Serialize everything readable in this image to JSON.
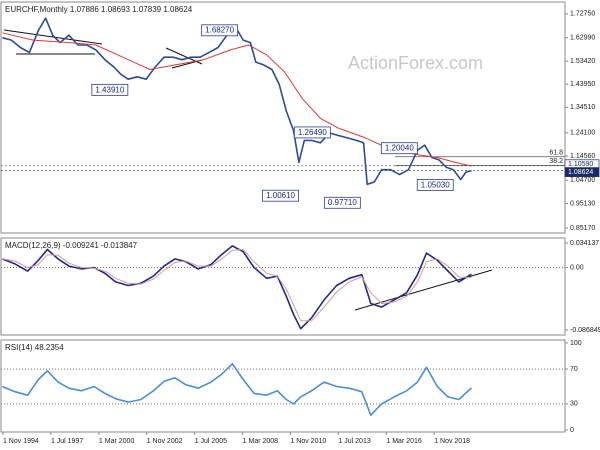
{
  "chart_data": [
    {
      "type": "line",
      "title": "EURCHF,Monthly  1.07886 1.08693 1.07839 1.08624",
      "watermark": "ActionForex.com",
      "xlim": [
        1994.72,
        2026.11
      ],
      "ylim": [
        0.831,
        1.776
      ],
      "yticks": [
        {
          "value": 1.7275,
          "label": "1.72750"
        },
        {
          "value": 1.6299,
          "label": "1.62990"
        },
        {
          "value": 1.5342,
          "label": "1.53420"
        },
        {
          "value": 1.4395,
          "label": "1.43950"
        },
        {
          "value": 1.3451,
          "label": "1.34510"
        },
        {
          "value": 1.241,
          "label": "1.24100"
        },
        {
          "value": 1.1456,
          "label": "1.14560"
        },
        {
          "value": 1.047,
          "label": "1.04700"
        },
        {
          "value": 0.9513,
          "label": "0.95130"
        },
        {
          "value": 0.8517,
          "label": "0.85170"
        }
      ],
      "series": [
        {
          "name": "EURCHF",
          "color": "#2b4c9b",
          "x": [
            1994.8,
            1995.3,
            1995.8,
            1996.3,
            1996.8,
            1997.2,
            1997.6,
            1998.0,
            1998.5,
            1999.0,
            1999.5,
            2000.0,
            2000.5,
            2001.0,
            2001.4,
            2001.8,
            2002.3,
            2002.8,
            2003.3,
            2003.8,
            2004.3,
            2004.8,
            2005.3,
            2005.8,
            2006.3,
            2006.8,
            2007.3,
            2007.8,
            2008.2,
            2008.6,
            2008.9,
            2009.3,
            2009.8,
            2010.2,
            2010.6,
            2011.0,
            2011.3,
            2011.6,
            2012.0,
            2012.5,
            2013.0,
            2013.5,
            2014.0,
            2014.5,
            2014.9,
            2015.1,
            2015.5,
            2015.9,
            2016.4,
            2016.9,
            2017.4,
            2017.9,
            2018.3,
            2018.7,
            2019.1,
            2019.5,
            2019.9,
            2020.3,
            2020.6,
            2020.9
          ],
          "values": [
            1.63,
            1.62,
            1.59,
            1.57,
            1.66,
            1.71,
            1.64,
            1.61,
            1.64,
            1.6,
            1.6,
            1.58,
            1.54,
            1.51,
            1.48,
            1.46,
            1.47,
            1.46,
            1.51,
            1.55,
            1.55,
            1.54,
            1.55,
            1.55,
            1.57,
            1.59,
            1.64,
            1.67,
            1.62,
            1.61,
            1.53,
            1.52,
            1.5,
            1.44,
            1.33,
            1.25,
            1.12,
            1.21,
            1.21,
            1.2,
            1.24,
            1.23,
            1.22,
            1.21,
            1.2,
            1.03,
            1.04,
            1.09,
            1.09,
            1.07,
            1.09,
            1.17,
            1.19,
            1.14,
            1.13,
            1.1,
            1.09,
            1.05,
            1.08,
            1.086
          ]
        },
        {
          "name": "SMA",
          "color": "#e03a3a",
          "x": [
            1994.8,
            1996.5,
            1998.5,
            2000.0,
            2001.5,
            2003.0,
            2004.5,
            2006.0,
            2007.5,
            2008.5,
            2009.5,
            2010.5,
            2011.5,
            2012.5,
            2013.5,
            2015.0,
            2016.5,
            2018.0,
            2019.0,
            2020.0,
            2020.9
          ],
          "values": [
            1.65,
            1.62,
            1.61,
            1.6,
            1.55,
            1.5,
            1.52,
            1.54,
            1.58,
            1.6,
            1.56,
            1.49,
            1.38,
            1.3,
            1.26,
            1.22,
            1.17,
            1.15,
            1.14,
            1.12,
            1.105
          ]
        }
      ],
      "annotations": [
        {
          "label": "1.68270",
          "value": 1.6827,
          "x": 2007.89
        },
        {
          "label": "1.43910",
          "value": 1.4391,
          "x": 2001.78
        },
        {
          "label": "1.26490",
          "value": 1.2649,
          "x": 2013.05
        },
        {
          "label": "1.00610",
          "value": 1.0061,
          "x": 2011.28
        },
        {
          "label": "0.97710",
          "value": 0.9771,
          "x": 2014.72
        },
        {
          "label": "1.20040",
          "value": 1.2004,
          "x": 2017.89
        },
        {
          "label": "1.05030",
          "value": 1.0503,
          "x": 2019.89
        }
      ],
      "fib_levels": [
        {
          "label": "61.8",
          "value": 1.143
        },
        {
          "label": "38.2",
          "value": 1.1076
        }
      ],
      "price_tags": {
        "values": [
          1.1059,
          1.08624
        ],
        "value_labels": [
          "1.10590",
          "1.08624"
        ]
      }
    },
    {
      "type": "line",
      "title": "MACD(12,26,9) -0.009241 -0.013847",
      "xlim": [
        1994.72,
        2026.11
      ],
      "ylim": [
        -0.0938,
        0.041
      ],
      "yticks": [
        0.034137,
        {
          "value": 0,
          "label": "0.00"
        },
        -0.086849
      ],
      "levels": [
        0
      ],
      "series": [
        {
          "name": "MACD",
          "color": "#1f2a8a",
          "x": [
            1994.8,
            1995.5,
            1996.2,
            1996.8,
            1997.3,
            1997.9,
            1998.5,
            1999.2,
            1999.9,
            2000.5,
            2001.1,
            2001.8,
            2002.5,
            2003.2,
            2003.8,
            2004.4,
            2005.0,
            2005.7,
            2006.4,
            2007.0,
            2007.6,
            2008.2,
            2008.8,
            2009.5,
            2010.1,
            2010.6,
            2011.0,
            2011.4,
            2012.0,
            2012.7,
            2013.4,
            2014.1,
            2014.8,
            2015.3,
            2015.9,
            2016.6,
            2017.3,
            2017.9,
            2018.4,
            2019.0,
            2019.6,
            2020.2,
            2020.9
          ],
          "values": [
            0.012,
            0.005,
            -0.005,
            0.01,
            0.025,
            0.012,
            0.002,
            -0.002,
            0.0,
            -0.008,
            -0.02,
            -0.025,
            -0.022,
            -0.012,
            0.002,
            0.012,
            0.008,
            -0.002,
            0.004,
            0.018,
            0.03,
            0.022,
            0.0,
            -0.015,
            -0.012,
            -0.04,
            -0.065,
            -0.085,
            -0.07,
            -0.045,
            -0.025,
            -0.015,
            -0.01,
            -0.05,
            -0.055,
            -0.045,
            -0.035,
            -0.01,
            0.02,
            0.01,
            -0.005,
            -0.02,
            -0.009241
          ]
        },
        {
          "name": "Signal",
          "color": "#d59a9a",
          "x": [
            1994.8,
            1995.5,
            1996.2,
            1996.8,
            1997.3,
            1997.9,
            1998.5,
            1999.2,
            1999.9,
            2000.5,
            2001.1,
            2001.8,
            2002.5,
            2003.2,
            2003.8,
            2004.4,
            2005.0,
            2005.7,
            2006.4,
            2007.0,
            2007.6,
            2008.2,
            2008.8,
            2009.5,
            2010.1,
            2010.6,
            2011.0,
            2011.4,
            2012.0,
            2012.7,
            2013.4,
            2014.1,
            2014.8,
            2015.3,
            2015.9,
            2016.6,
            2017.3,
            2017.9,
            2018.4,
            2019.0,
            2019.6,
            2020.2,
            2020.9
          ],
          "values": [
            0.012,
            0.009,
            0.0,
            0.004,
            0.018,
            0.017,
            0.006,
            0.0,
            -0.001,
            -0.005,
            -0.015,
            -0.022,
            -0.023,
            -0.016,
            -0.004,
            0.007,
            0.009,
            0.002,
            0.002,
            0.012,
            0.024,
            0.025,
            0.008,
            -0.008,
            -0.012,
            -0.03,
            -0.052,
            -0.074,
            -0.074,
            -0.055,
            -0.034,
            -0.02,
            -0.013,
            -0.035,
            -0.05,
            -0.048,
            -0.04,
            -0.02,
            0.008,
            0.012,
            0.002,
            -0.013,
            -0.013847
          ]
        }
      ]
    },
    {
      "type": "line",
      "title": "RSI(14) 48.2354",
      "xlim": [
        1994.72,
        2026.11
      ],
      "ylim": [
        -2.3,
        103.4
      ],
      "yticks": [
        100,
        70,
        30,
        0
      ],
      "levels": [
        70,
        30
      ],
      "xticks": [
        {
          "value": 1994.83,
          "label": "1 Nov 1994"
        },
        {
          "value": 1997.5,
          "label": "1 Jul 1997"
        },
        {
          "value": 2000.17,
          "label": "1 Mar 2000"
        },
        {
          "value": 2002.83,
          "label": "1 Nov 2002"
        },
        {
          "value": 2005.5,
          "label": "1 Jul 2005"
        },
        {
          "value": 2008.17,
          "label": "1 Mar 2008"
        },
        {
          "value": 2010.83,
          "label": "1 Nov 2010"
        },
        {
          "value": 2013.5,
          "label": "1 Jul 2013"
        },
        {
          "value": 2016.17,
          "label": "1 Mar 2016"
        },
        {
          "value": 2018.83,
          "label": "1 Nov 2018"
        }
      ],
      "series": [
        {
          "name": "RSI",
          "color": "#4a8fd8",
          "x": [
            1994.8,
            1995.5,
            1996.2,
            1996.8,
            1997.3,
            1997.9,
            1998.5,
            1999.2,
            1999.9,
            2000.5,
            2001.1,
            2001.8,
            2002.5,
            2003.2,
            2003.8,
            2004.4,
            2005.0,
            2005.7,
            2006.4,
            2007.0,
            2007.6,
            2008.2,
            2008.8,
            2009.5,
            2010.1,
            2010.6,
            2011.0,
            2011.4,
            2012.0,
            2012.7,
            2013.4,
            2014.1,
            2014.8,
            2015.3,
            2015.9,
            2016.6,
            2017.3,
            2017.9,
            2018.4,
            2019.0,
            2019.6,
            2020.2,
            2020.9
          ],
          "values": [
            50,
            44,
            40,
            58,
            68,
            55,
            48,
            45,
            50,
            42,
            36,
            32,
            35,
            45,
            56,
            60,
            52,
            48,
            55,
            64,
            76,
            58,
            42,
            40,
            45,
            35,
            30,
            38,
            45,
            55,
            50,
            48,
            44,
            17,
            30,
            38,
            45,
            55,
            72,
            50,
            38,
            35,
            48.2354
          ]
        }
      ]
    }
  ]
}
